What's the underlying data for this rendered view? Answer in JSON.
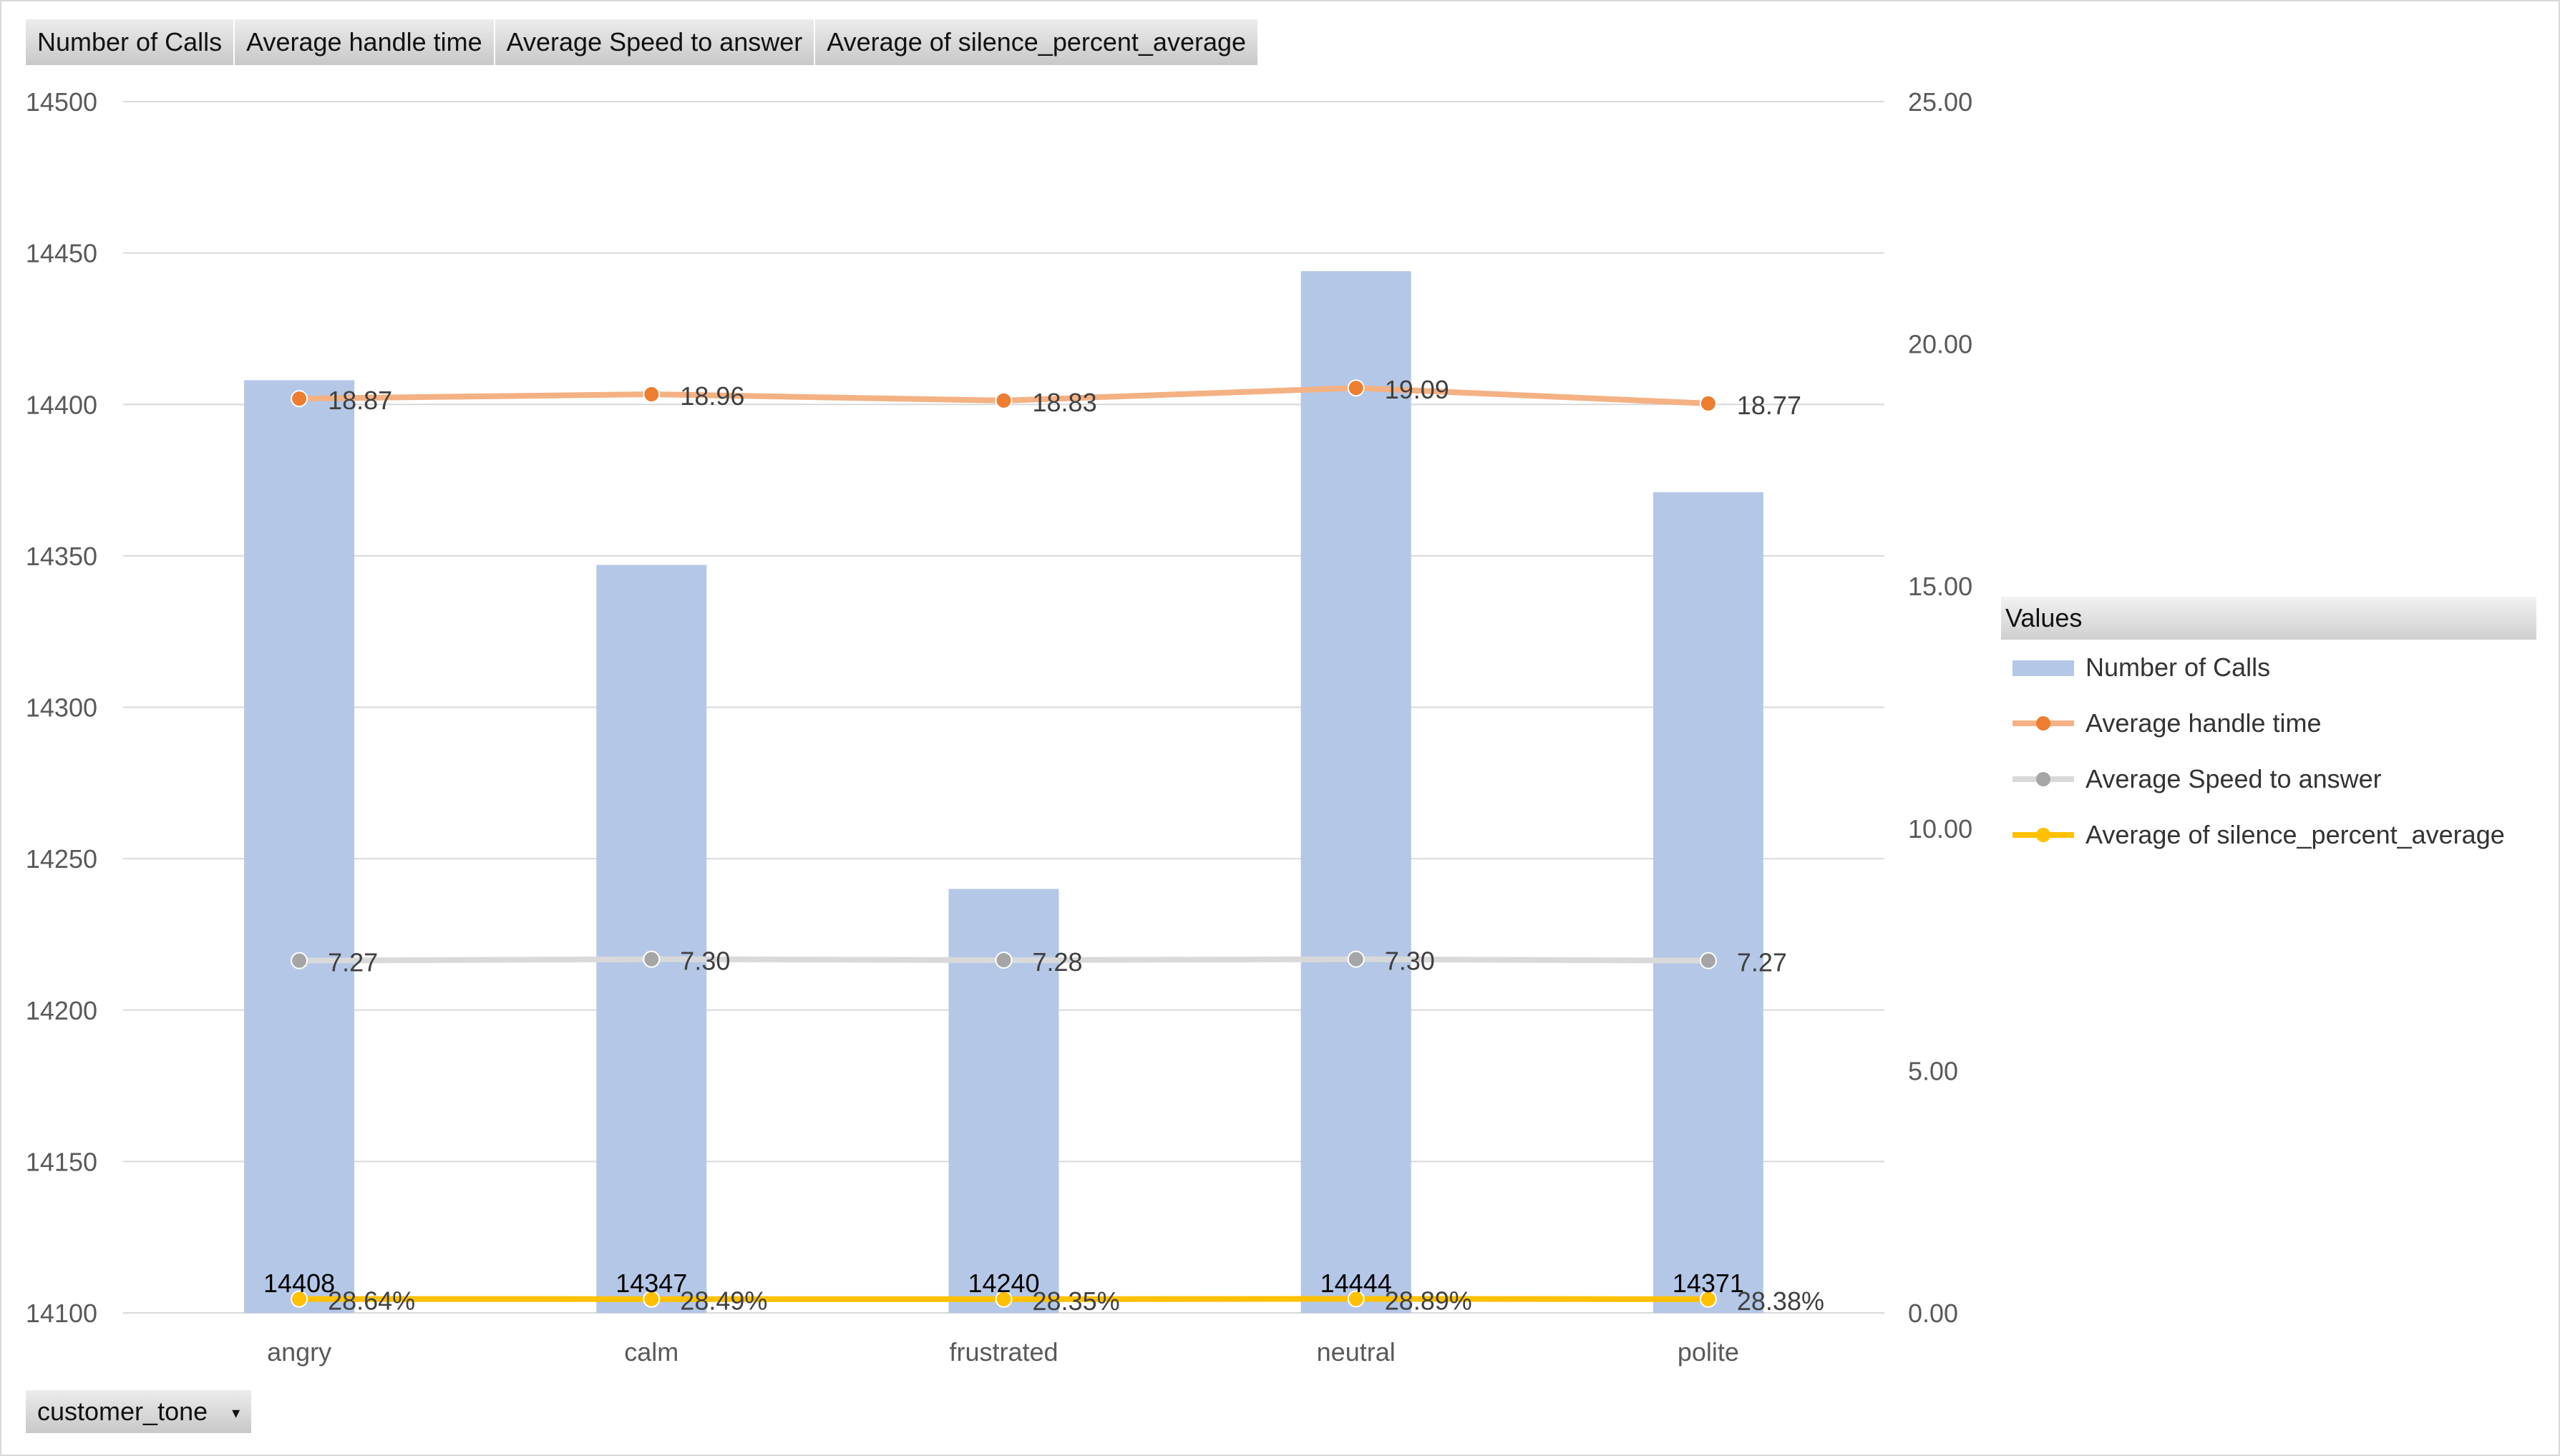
{
  "fields": {
    "values": [
      "Number of Calls",
      "Average  handle time",
      "Average  Speed to answer",
      "Average  of silence_percent_average"
    ],
    "axis_field": "customer_tone"
  },
  "legend": {
    "title": "Values",
    "items": [
      {
        "label": "Number of Calls",
        "kind": "bar",
        "color": "#b4c7e7"
      },
      {
        "label": "Average handle time",
        "kind": "line",
        "color": "#f4b183",
        "marker": "#ed7d31"
      },
      {
        "label": "Average Speed to answer",
        "kind": "line",
        "color": "#d9d9d9",
        "marker": "#a5a5a5"
      },
      {
        "label": "Average of silence_percent_average",
        "kind": "line",
        "color": "#ffc000",
        "marker": "#ffc000"
      }
    ]
  },
  "chart_data": {
    "type": "bar",
    "categories": [
      "angry",
      "calm",
      "frustrated",
      "neutral",
      "polite"
    ],
    "series": [
      {
        "name": "Number of Calls",
        "type": "bar",
        "axis": "left",
        "values": [
          14408,
          14347,
          14240,
          14444,
          14371
        ],
        "labels": [
          "14408",
          "14347",
          "14240",
          "14444",
          "14371"
        ]
      },
      {
        "name": "Average handle time",
        "type": "line",
        "axis": "right",
        "values": [
          18.87,
          18.96,
          18.83,
          19.09,
          18.77
        ],
        "labels": [
          "18.87",
          "18.96",
          "18.83",
          "19.09",
          "18.77"
        ]
      },
      {
        "name": "Average Speed to answer",
        "type": "line",
        "axis": "right",
        "values": [
          7.27,
          7.3,
          7.28,
          7.3,
          7.27
        ],
        "labels": [
          "7.27",
          "7.30",
          "7.28",
          "7.30",
          "7.27"
        ]
      },
      {
        "name": "Average of silence_percent_average",
        "type": "line",
        "axis": "right",
        "values": [
          0.2864,
          0.2849,
          0.2835,
          0.2889,
          0.2838
        ],
        "labels": [
          "28.64%",
          "28.49%",
          "28.35%",
          "28.89%",
          "28.38%"
        ]
      }
    ],
    "y_left": {
      "min": 14100,
      "max": 14500,
      "ticks": [
        "14100",
        "14150",
        "14200",
        "14250",
        "14300",
        "14350",
        "14400",
        "14450",
        "14500"
      ]
    },
    "y_right": {
      "min": 0,
      "max": 25,
      "ticks": [
        "0.00",
        "5.00",
        "10.00",
        "15.00",
        "20.00",
        "25.00"
      ]
    },
    "grid": true,
    "legend_position": "right"
  }
}
